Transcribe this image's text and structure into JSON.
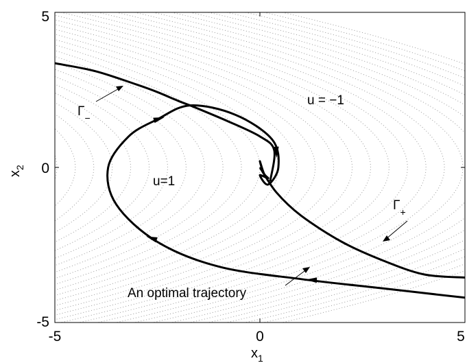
{
  "chart_data": {
    "type": "line",
    "title": "",
    "xlabel": "x",
    "xlabel_sub": "1",
    "ylabel": "x",
    "ylabel_sub": "2",
    "xlim": [
      -5,
      5
    ],
    "ylim": [
      -5,
      5
    ],
    "xticks": [
      "-5",
      "0",
      "5"
    ],
    "yticks": [
      "5",
      "0",
      "-5"
    ],
    "grid": false,
    "background_field": "dotted phase-plane trajectories",
    "colors": {
      "curves": "#000000",
      "field": "#9a9a9a"
    },
    "annotations": {
      "gamma_minus": "Γ",
      "gamma_minus_sub": "−",
      "gamma_plus": "Γ",
      "gamma_plus_sub": "+",
      "region_top": "u = −1",
      "region_bottom": "u=1",
      "optimal_traj": "An optimal trajectory"
    },
    "series": [
      {
        "role": "switching-curve-gamma-minus",
        "x": [
          -5,
          -4,
          -3,
          -2.5,
          -2,
          -1.7
        ],
        "y": [
          3.36,
          3.1,
          2.67,
          2.43,
          2.15,
          2.0
        ]
      },
      {
        "role": "switching-curve-gamma-plus",
        "x": [
          0,
          0.4,
          1,
          2,
          3,
          4,
          5
        ],
        "y": [
          0,
          -0.8,
          -1.55,
          -2.4,
          -3.0,
          -3.45,
          -3.55
        ]
      },
      {
        "role": "optimal-trajectory",
        "x": [
          5,
          3,
          1,
          -1,
          -2.5,
          -3.5,
          -3.7,
          -3.2,
          -2.5,
          -1.7,
          -0.6,
          0.3,
          0.45,
          0.2,
          0.0,
          0.2,
          0.1,
          0.0,
          0.05
        ],
        "y": [
          -4.2,
          -3.9,
          -3.6,
          -3.2,
          -2.4,
          -1.2,
          0.0,
          1.0,
          1.55,
          2.0,
          1.7,
          0.9,
          0.0,
          -0.55,
          -0.25,
          -0.35,
          -0.2,
          0.2,
          -0.05
        ]
      },
      {
        "role": "alt-path",
        "x": [
          -1.7,
          -0.8,
          0.0,
          0.35,
          0.25
        ],
        "y": [
          2.0,
          1.5,
          1.0,
          0.55,
          -0.45
        ]
      }
    ]
  }
}
